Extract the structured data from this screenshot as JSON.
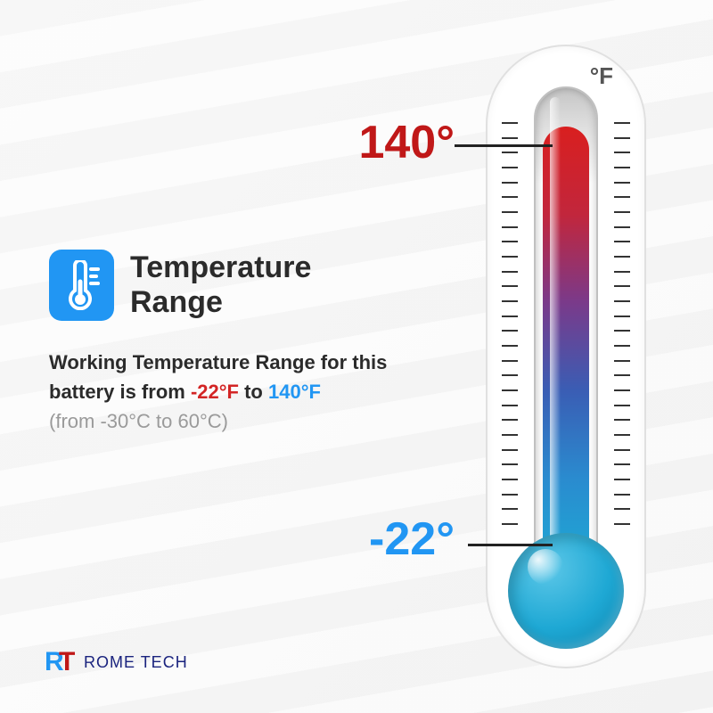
{
  "colors": {
    "icon_bg": "#2196f3",
    "icon_fg": "#ffffff",
    "title": "#2b2b2b",
    "desc": "#2b2b2b",
    "low_value": "#d32525",
    "high_value": "#2196f3",
    "high_label": "#c01818",
    "low_label": "#2196f3",
    "celsius": "#9a9a9a",
    "bulb": "#1ea8d4",
    "logo_rt_left": "#2196f3",
    "logo_rt_right": "#c01818",
    "logo_text": "#1a237e"
  },
  "thermometer": {
    "unit": "°F",
    "high": {
      "value_f": 140,
      "label": "140°",
      "position_pct_from_top": 12
    },
    "low": {
      "value_f": -22,
      "label": "-22°",
      "position_pct_from_top": 90
    },
    "fill_top_pct": 8,
    "fill_gradient": [
      "#d91f1f",
      "#c2263c",
      "#7a3a8a",
      "#3a5db4",
      "#2a8bcf",
      "#1ea8d4"
    ],
    "tick_count": 28
  },
  "content": {
    "title": "Temperature Range",
    "desc_prefix": "Working Temperature Range for this battery is from ",
    "low_f": "-22°F",
    "mid": " to ",
    "high_f": "140°F",
    "celsius_note": "(from -30°C to 60°C)"
  },
  "logo": {
    "rt": "RT",
    "name_part1": "ROME",
    "name_part2": "TECH"
  }
}
